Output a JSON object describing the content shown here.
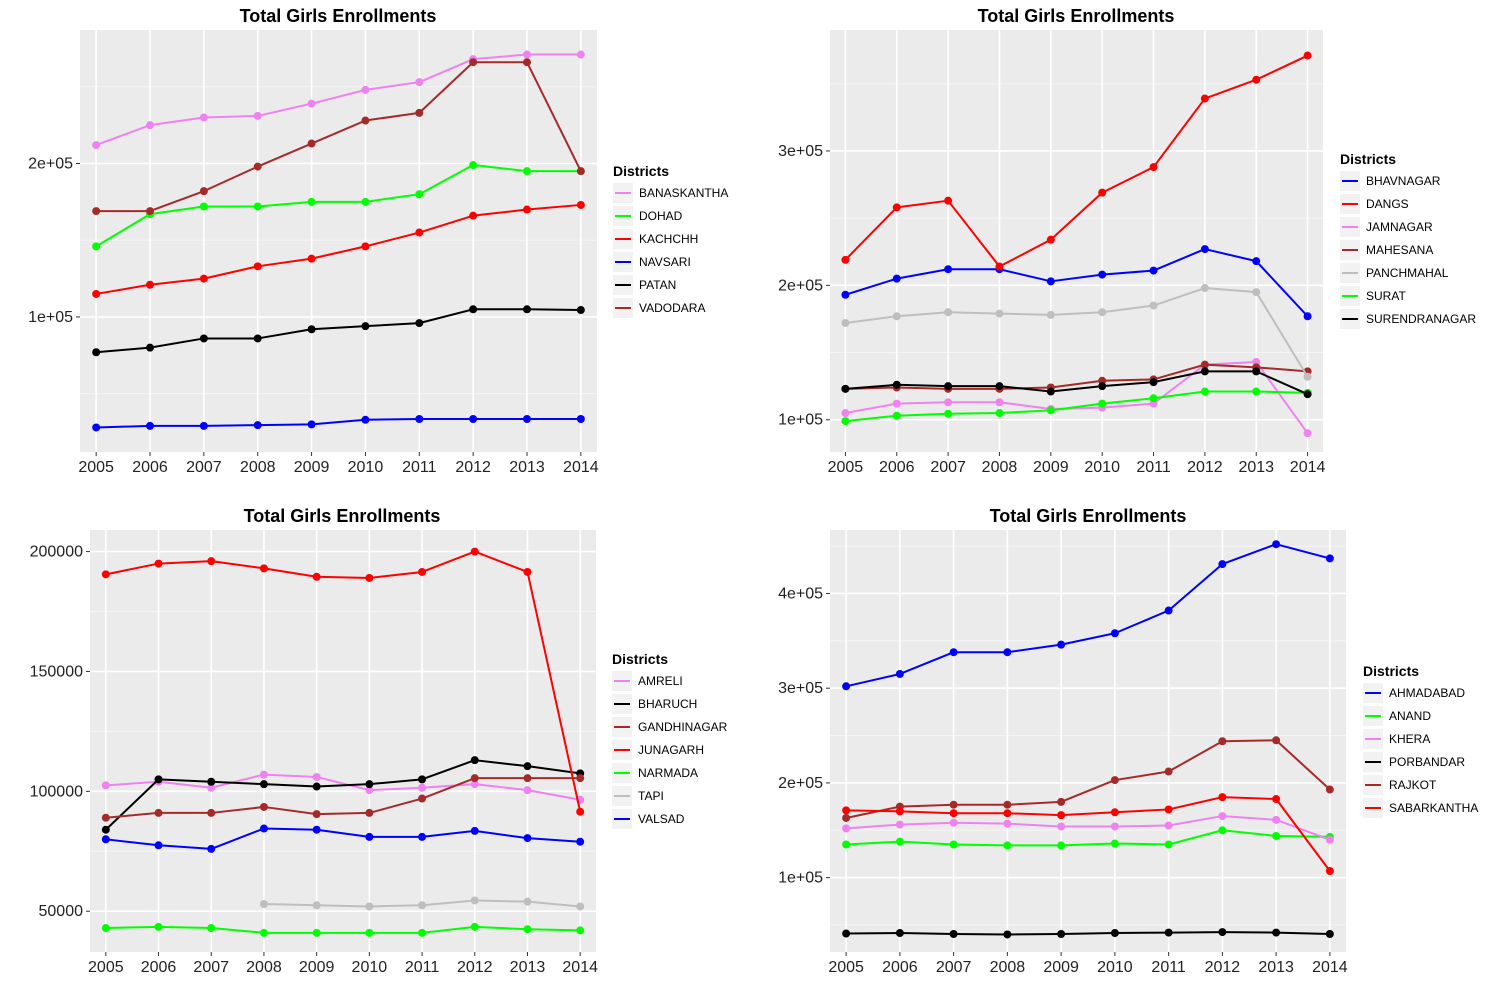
{
  "chart_data": [
    {
      "type": "line",
      "title": "Total Girls Enrollments",
      "xlabel": "",
      "ylabel": "",
      "legend_title": "Districts",
      "legend_position": "right",
      "grid": true,
      "x": [
        2005,
        2006,
        2007,
        2008,
        2009,
        2010,
        2011,
        2012,
        2013,
        2014
      ],
      "xlim": [
        2004.7,
        2014.3
      ],
      "ylim": [
        12000,
        287000
      ],
      "y_ticks": [
        100000,
        200000
      ],
      "y_tick_labels": [
        "1e+05",
        "2e+05"
      ],
      "series": [
        {
          "name": "BANASKANTHA",
          "color": "#EE82EE",
          "values": [
            212000,
            225000,
            230000,
            231000,
            239000,
            248000,
            253000,
            268000,
            271000,
            271000
          ]
        },
        {
          "name": "DOHAD",
          "color": "#00FF00",
          "values": [
            146000,
            167000,
            172000,
            172000,
            175000,
            175000,
            180000,
            199000,
            195000,
            195000
          ]
        },
        {
          "name": "KACHCHH",
          "color": "#FF0000",
          "values": [
            115000,
            121000,
            125000,
            133000,
            138000,
            146000,
            155000,
            166000,
            170000,
            173000
          ]
        },
        {
          "name": "NAVSARI",
          "color": "#0000FF",
          "values": [
            28000,
            29000,
            29000,
            29500,
            30000,
            33000,
            33500,
            33500,
            33500,
            33500
          ]
        },
        {
          "name": "PATAN",
          "color": "#000000",
          "values": [
            77000,
            80000,
            86000,
            86000,
            92000,
            94000,
            96000,
            105000,
            105000,
            104500
          ]
        },
        {
          "name": "VADODARA",
          "color": "#A52A2A",
          "values": [
            169000,
            169000,
            182000,
            198000,
            213000,
            228000,
            233000,
            266000,
            266000,
            195000
          ]
        }
      ]
    },
    {
      "type": "line",
      "title": "Total Girls Enrollments",
      "xlabel": "",
      "ylabel": "",
      "legend_title": "Districts",
      "legend_position": "right",
      "grid": true,
      "x": [
        2005,
        2006,
        2007,
        2008,
        2009,
        2010,
        2011,
        2012,
        2013,
        2014
      ],
      "xlim": [
        2004.7,
        2014.3
      ],
      "ylim": [
        76000,
        390000
      ],
      "y_ticks": [
        100000,
        200000,
        300000
      ],
      "y_tick_labels": [
        "1e+05",
        "2e+05",
        "3e+05"
      ],
      "series": [
        {
          "name": "BHAVNAGAR",
          "color": "#0000FF",
          "values": [
            193000,
            205000,
            212000,
            212000,
            203000,
            208000,
            211000,
            227000,
            218000,
            177000
          ]
        },
        {
          "name": "DANGS",
          "color": "#FF0000",
          "values": [
            219000,
            258000,
            263000,
            214000,
            234000,
            269000,
            288000,
            339000,
            353000,
            371000
          ]
        },
        {
          "name": "JAMNAGAR",
          "color": "#EE82EE",
          "values": [
            105000,
            112000,
            113000,
            113000,
            108000,
            109000,
            112000,
            141000,
            143000,
            90000
          ]
        },
        {
          "name": "MAHESANA",
          "color": "#A52A2A",
          "values": [
            123000,
            124000,
            123000,
            123000,
            124000,
            129000,
            130000,
            141000,
            139000,
            136000
          ]
        },
        {
          "name": "PANCHMAHAL",
          "color": "#BEBEBE",
          "values": [
            172000,
            177000,
            180000,
            179000,
            178000,
            180000,
            185000,
            198000,
            195000,
            132000
          ]
        },
        {
          "name": "SURAT",
          "color": "#00FF00",
          "values": [
            99000,
            103000,
            104500,
            105000,
            107000,
            112000,
            116000,
            121000,
            121000,
            120000
          ]
        },
        {
          "name": "SURENDRANAGAR",
          "color": "#000000",
          "values": [
            123000,
            126000,
            125000,
            125000,
            121000,
            125000,
            128000,
            136000,
            136000,
            119000
          ]
        }
      ]
    },
    {
      "type": "line",
      "title": "Total Girls Enrollments",
      "xlabel": "",
      "ylabel": "",
      "legend_title": "Districts",
      "legend_position": "right",
      "grid": true,
      "x": [
        2005,
        2006,
        2007,
        2008,
        2009,
        2010,
        2011,
        2012,
        2013,
        2014
      ],
      "xlim": [
        2004.7,
        2014.3
      ],
      "ylim": [
        33000,
        209000
      ],
      "y_ticks": [
        50000,
        100000,
        150000,
        200000
      ],
      "y_tick_labels": [
        "50000",
        "100000",
        "150000",
        "200000"
      ],
      "series": [
        {
          "name": "AMRELI",
          "color": "#EE82EE",
          "values": [
            102500,
            104000,
            101500,
            107000,
            106000,
            100500,
            101500,
            103000,
            100500,
            96500
          ]
        },
        {
          "name": "BHARUCH",
          "color": "#000000",
          "values": [
            84000,
            105000,
            104000,
            103000,
            102000,
            103000,
            105000,
            113000,
            110500,
            107500
          ]
        },
        {
          "name": "GANDHINAGAR",
          "color": "#A52A2A",
          "values": [
            89000,
            91000,
            91000,
            93500,
            90500,
            91000,
            97000,
            105500,
            105500,
            105500
          ]
        },
        {
          "name": "JUNAGARH",
          "color": "#FF0000",
          "values": [
            190500,
            195000,
            196000,
            193000,
            189500,
            189000,
            191500,
            200000,
            191500,
            91500
          ]
        },
        {
          "name": "NARMADA",
          "color": "#00FF00",
          "values": [
            43000,
            43500,
            43000,
            41000,
            41000,
            41000,
            41000,
            43500,
            42500,
            42000
          ]
        },
        {
          "name": "TAPI",
          "color": "#BEBEBE",
          "values": [
            null,
            null,
            null,
            53000,
            52500,
            52000,
            52500,
            54500,
            54000,
            52000
          ]
        },
        {
          "name": "VALSAD",
          "color": "#0000FF",
          "values": [
            80000,
            77500,
            76000,
            84500,
            84000,
            81000,
            81000,
            83500,
            80500,
            79000
          ]
        }
      ]
    },
    {
      "type": "line",
      "title": "Total Girls Enrollments",
      "xlabel": "",
      "ylabel": "",
      "legend_title": "Districts",
      "legend_position": "right",
      "grid": true,
      "x": [
        2005,
        2006,
        2007,
        2008,
        2009,
        2010,
        2011,
        2012,
        2013,
        2014
      ],
      "xlim": [
        2004.7,
        2014.3
      ],
      "ylim": [
        21500,
        467000
      ],
      "y_ticks": [
        100000,
        200000,
        300000,
        400000
      ],
      "y_tick_labels": [
        "1e+05",
        "2e+05",
        "3e+05",
        "4e+05"
      ],
      "series": [
        {
          "name": "AHMADABAD",
          "color": "#0000FF",
          "values": [
            302000,
            315000,
            338000,
            338000,
            346000,
            358000,
            382000,
            431000,
            452000,
            437000
          ]
        },
        {
          "name": "ANAND",
          "color": "#00FF00",
          "values": [
            135000,
            138000,
            135000,
            134000,
            134000,
            136000,
            135000,
            150000,
            144000,
            143000
          ]
        },
        {
          "name": "KHERA",
          "color": "#EE82EE",
          "values": [
            152000,
            156000,
            158000,
            157000,
            154000,
            154000,
            155000,
            165000,
            161000,
            140000
          ]
        },
        {
          "name": "PORBANDAR",
          "color": "#000000",
          "values": [
            41000,
            41500,
            40500,
            40000,
            40500,
            41500,
            42000,
            42500,
            42000,
            40500
          ]
        },
        {
          "name": "RAJKOT",
          "color": "#A52A2A",
          "values": [
            163000,
            175000,
            177000,
            177000,
            180000,
            203000,
            212000,
            244000,
            245000,
            193000
          ]
        },
        {
          "name": "SABARKANTHA",
          "color": "#FF0000",
          "values": [
            171000,
            170000,
            168000,
            168000,
            166000,
            169000,
            172000,
            185000,
            183000,
            107000
          ]
        }
      ]
    }
  ]
}
